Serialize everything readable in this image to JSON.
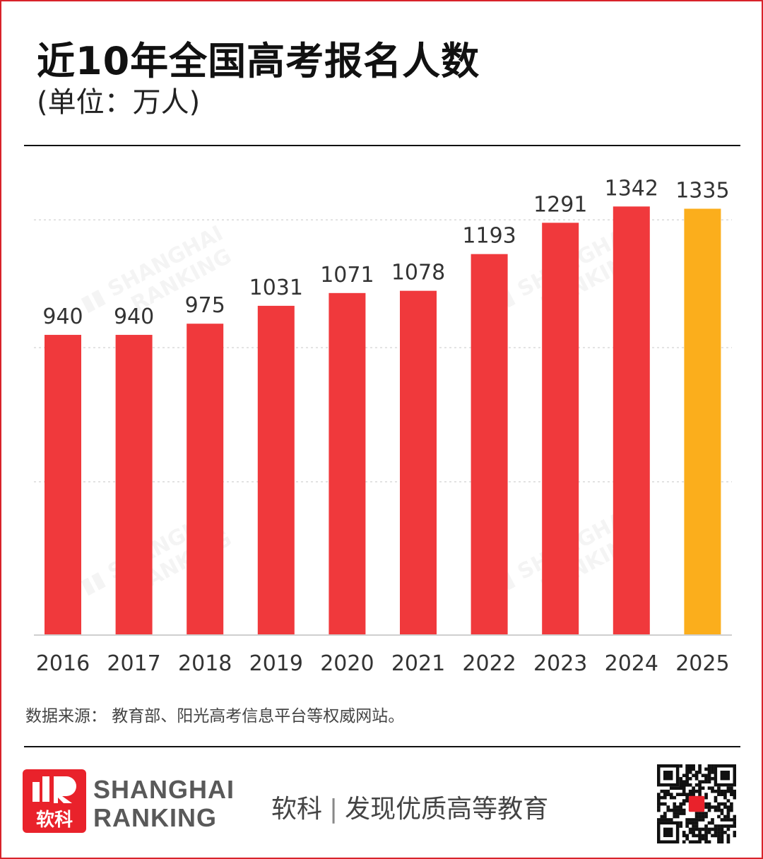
{
  "header": {
    "title": "近10年全国高考报名人数",
    "subtitle": "(单位：万人)"
  },
  "chart_data": {
    "type": "bar",
    "categories": [
      "2016",
      "2017",
      "2018",
      "2019",
      "2020",
      "2021",
      "2022",
      "2023",
      "2024",
      "2025"
    ],
    "values": [
      940,
      940,
      975,
      1031,
      1071,
      1078,
      1193,
      1291,
      1342,
      1335
    ],
    "value_labels": [
      "940",
      "940",
      "975",
      "1031",
      "1071",
      "1078",
      "1193",
      "1291",
      "1342",
      "1335"
    ],
    "ylim": [
      0,
      1440
    ],
    "grid": "dashed horizontal",
    "colors": {
      "bar": "#f0393c",
      "highlight": "#fbae1c",
      "grid": "#d9d9d9"
    },
    "highlight_index": 9
  },
  "source_text": "数据来源： 教育部、阳光高考信息平台等权威网站。",
  "footer": {
    "logo_line1": "SHANGHAI",
    "logo_line2": "RANKING",
    "logo_cn": "软科",
    "slogan_brand": "软科",
    "slogan_separator": "|",
    "slogan_text": "发现优质高等教育",
    "logo_icon": "shanghai-ranking-logo-icon",
    "qr_icon": "qr-code-icon",
    "brand_color": "#e9222b"
  }
}
